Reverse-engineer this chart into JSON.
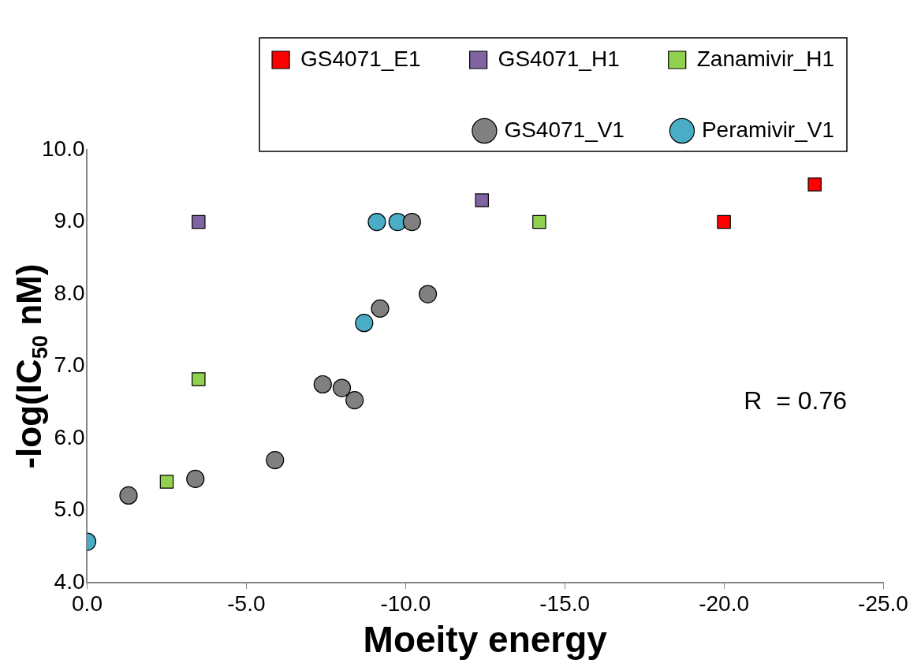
{
  "chart_data": {
    "type": "scatter",
    "xlabel": "Moeity energy",
    "ylabel": "-log(IC$_{50}$ nM)",
    "xlim": [
      0,
      -25
    ],
    "xticks": [
      {
        "value": 0,
        "label": "0.0"
      },
      {
        "value": -5,
        "label": "-5.0"
      },
      {
        "value": -10,
        "label": "-10.0"
      },
      {
        "value": -15,
        "label": "-15.0"
      },
      {
        "value": -20,
        "label": "-20.0"
      },
      {
        "value": -25,
        "label": "-25.0"
      }
    ],
    "ylim": [
      4,
      10
    ],
    "yticks": [
      {
        "value": 4,
        "label": "4.0"
      },
      {
        "value": 5,
        "label": "5.0"
      },
      {
        "value": 6,
        "label": "6.0"
      },
      {
        "value": 7,
        "label": "7.0"
      },
      {
        "value": 8,
        "label": "8.0"
      },
      {
        "value": 9,
        "label": "9.0"
      },
      {
        "value": 10,
        "label": "10.0"
      }
    ],
    "grid": false,
    "legend": "top",
    "annotations": [
      "R  = 0.76"
    ],
    "series": [
      {
        "name": "GS4071_E1",
        "color": "#ff0000",
        "marker": "square",
        "x": [
          -22.85,
          -20.0
        ],
        "values": [
          9.52,
          9.0
        ]
      },
      {
        "name": "GS4071_H1",
        "color": "#8064a2",
        "marker": "square",
        "x": [
          -3.5,
          -12.4
        ],
        "values": [
          9.0,
          9.3
        ]
      },
      {
        "name": "Zanamivir_H1",
        "color": "#92d050",
        "marker": "square",
        "x": [
          -14.2,
          -3.5,
          -2.5
        ],
        "values": [
          9.0,
          6.82,
          5.4
        ]
      },
      {
        "name": "GS4071_V1",
        "color": "#808080",
        "marker": "circle",
        "x": [
          -10.2,
          -10.7,
          -9.2,
          -7.4,
          -8.0,
          -8.4,
          -5.9,
          -3.4,
          -1.3
        ],
        "values": [
          9.0,
          8.0,
          7.8,
          6.75,
          6.7,
          6.53,
          5.7,
          5.44,
          5.21
        ]
      },
      {
        "name": "Peramivir_V1",
        "color": "#4bacc6",
        "marker": "circle",
        "x": [
          -9.1,
          -9.75,
          -8.7,
          0.0
        ],
        "values": [
          9.0,
          9.0,
          7.6,
          4.57
        ]
      }
    ]
  }
}
